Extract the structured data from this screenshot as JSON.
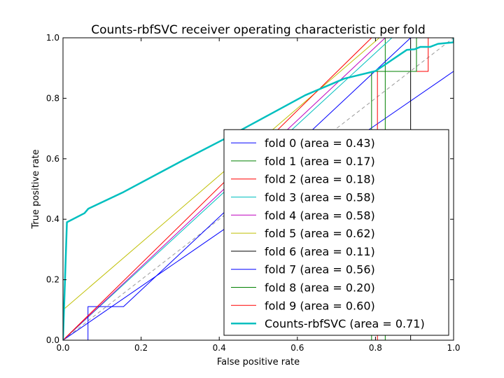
{
  "chart_data": {
    "type": "line",
    "title": "Counts-rbfSVC receiver operating characteristic per fold",
    "xlabel": "False positive rate",
    "ylabel": "True positive rate",
    "xlim": [
      0,
      1
    ],
    "ylim": [
      0,
      1
    ],
    "xticks": [
      "0.0",
      "0.2",
      "0.4",
      "0.6",
      "0.8",
      "1.0"
    ],
    "yticks": [
      "0.0",
      "0.2",
      "0.4",
      "0.6",
      "0.8",
      "1.0"
    ],
    "grid": false,
    "legend_position": "lower right",
    "diagonal_reference": {
      "color": "#999999",
      "style": "dashed",
      "points": [
        [
          0,
          0
        ],
        [
          1,
          1
        ]
      ]
    },
    "series": [
      {
        "name": "fold 0 (area = 0.43)",
        "color": "#0000ff",
        "width": 1,
        "points": [
          [
            0,
            0
          ],
          [
            1,
            0.889
          ]
        ]
      },
      {
        "name": "fold 1 (area = 0.17)",
        "color": "#008000",
        "width": 1,
        "points": [
          [
            0,
            0
          ],
          [
            0.825,
            0
          ],
          [
            0.825,
            1.0
          ],
          [
            1,
            1.0
          ]
        ]
      },
      {
        "name": "fold 2 (area = 0.18)",
        "color": "#ff0000",
        "width": 1,
        "points": [
          [
            0,
            0
          ],
          [
            0.805,
            0
          ],
          [
            0.805,
            0.889
          ],
          [
            0.935,
            0.889
          ],
          [
            0.935,
            1.0
          ],
          [
            1,
            1.0
          ]
        ]
      },
      {
        "name": "fold 3 (area = 0.58)",
        "color": "#00bfbf",
        "width": 1,
        "points": [
          [
            0,
            0
          ],
          [
            0.842,
            1.0
          ],
          [
            1,
            1.0
          ]
        ]
      },
      {
        "name": "fold 4 (area = 0.58)",
        "color": "#bf00bf",
        "width": 1,
        "points": [
          [
            0,
            0
          ],
          [
            0.825,
            1.0
          ],
          [
            1,
            1.0
          ]
        ]
      },
      {
        "name": "fold 5 (area = 0.62)",
        "color": "#bfbf00",
        "width": 1,
        "points": [
          [
            0,
            0.1
          ],
          [
            0.81,
            1.0
          ],
          [
            1,
            1.0
          ]
        ]
      },
      {
        "name": "fold 6 (area = 0.11)",
        "color": "#000000",
        "width": 1,
        "points": [
          [
            0,
            0
          ],
          [
            0.89,
            0
          ],
          [
            0.89,
            1.0
          ],
          [
            1,
            1.0
          ]
        ]
      },
      {
        "name": "fold 7 (area = 0.56)",
        "color": "#0000ff",
        "width": 1,
        "points": [
          [
            0,
            0
          ],
          [
            0.064,
            0
          ],
          [
            0.064,
            0.111
          ],
          [
            0.155,
            0.111
          ],
          [
            0.89,
            1.0
          ],
          [
            1,
            1.0
          ]
        ]
      },
      {
        "name": "fold 8 (area = 0.20)",
        "color": "#008000",
        "width": 1,
        "points": [
          [
            0,
            0
          ],
          [
            0.79,
            0
          ],
          [
            0.79,
            0.889
          ],
          [
            0.905,
            0.889
          ],
          [
            0.905,
            1.0
          ],
          [
            1,
            1.0
          ]
        ]
      },
      {
        "name": "fold 9 (area = 0.60)",
        "color": "#ff0000",
        "width": 1,
        "points": [
          [
            0,
            0
          ],
          [
            0.79,
            1.0
          ],
          [
            1,
            1.0
          ]
        ]
      },
      {
        "name": "Counts-rbfSVC (area = 0.71)",
        "color": "#00bfbf",
        "width": 2.5,
        "points": [
          [
            0,
            0
          ],
          [
            0.01,
            0.39
          ],
          [
            0.055,
            0.42
          ],
          [
            0.065,
            0.435
          ],
          [
            0.155,
            0.49
          ],
          [
            0.3,
            0.59
          ],
          [
            0.42,
            0.67
          ],
          [
            0.52,
            0.74
          ],
          [
            0.62,
            0.81
          ],
          [
            0.72,
            0.865
          ],
          [
            0.8,
            0.89
          ],
          [
            0.88,
            0.96
          ],
          [
            0.9,
            0.962
          ],
          [
            0.915,
            0.97
          ],
          [
            0.94,
            0.97
          ],
          [
            0.96,
            0.98
          ],
          [
            1,
            0.985
          ],
          [
            1,
            1.0
          ]
        ]
      }
    ]
  }
}
